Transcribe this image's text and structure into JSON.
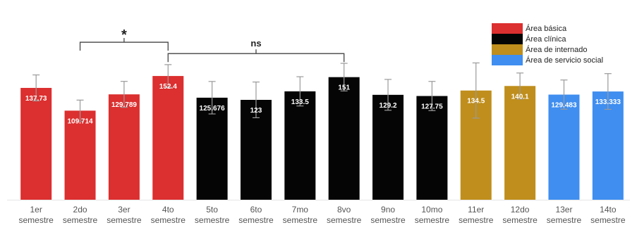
{
  "chart_data": {
    "type": "bar",
    "title": "",
    "xlabel": "",
    "ylabel": "",
    "ylim": [
      0,
      220
    ],
    "grid": false,
    "legend_placement": "top-right",
    "categories": [
      [
        "1er",
        "semestre"
      ],
      [
        "2do",
        "semestre"
      ],
      [
        "3er",
        "semestre"
      ],
      [
        "4to",
        "semestre"
      ],
      [
        "5to",
        "semestre"
      ],
      [
        "6to",
        "semestre"
      ],
      [
        "7mo",
        "semestre"
      ],
      [
        "8vo",
        "semestre"
      ],
      [
        "9no",
        "semestre"
      ],
      [
        "10mo",
        "semestre"
      ],
      [
        "11er",
        "semestre"
      ],
      [
        "12do",
        "semestre"
      ],
      [
        "13er",
        "semestre"
      ],
      [
        "14to",
        "semestre"
      ]
    ],
    "values": [
      137.73,
      109.714,
      129.789,
      152.4,
      125.676,
      123,
      133.5,
      151,
      129.2,
      127.75,
      134.5,
      140.1,
      129.483,
      133.333
    ],
    "value_labels": [
      "137.73",
      "109.714",
      "129.789",
      "152.4",
      "125.676",
      "123",
      "133.5",
      "151",
      "129.2",
      "127.75",
      "134.5",
      "140.1",
      "129.483",
      "133.333"
    ],
    "error": [
      16,
      13,
      16,
      14,
      20,
      22,
      18,
      17,
      19,
      18,
      34,
      16,
      18,
      22
    ],
    "groups": [
      0,
      0,
      0,
      0,
      1,
      1,
      1,
      1,
      1,
      1,
      2,
      2,
      3,
      3
    ],
    "legend": [
      {
        "label": "Área básica",
        "color": "#dc2f2f"
      },
      {
        "label": "Área clínica",
        "color": "#050505"
      },
      {
        "label": "Área de internado",
        "color": "#bf8e1c"
      },
      {
        "label": "Área de servicio social",
        "color": "#3f8ef0"
      }
    ],
    "annotations": [
      {
        "label": "*",
        "from": 1,
        "to": 3,
        "level": 194
      },
      {
        "label": "ns",
        "from": 3,
        "to": 7,
        "level": 180
      }
    ]
  }
}
